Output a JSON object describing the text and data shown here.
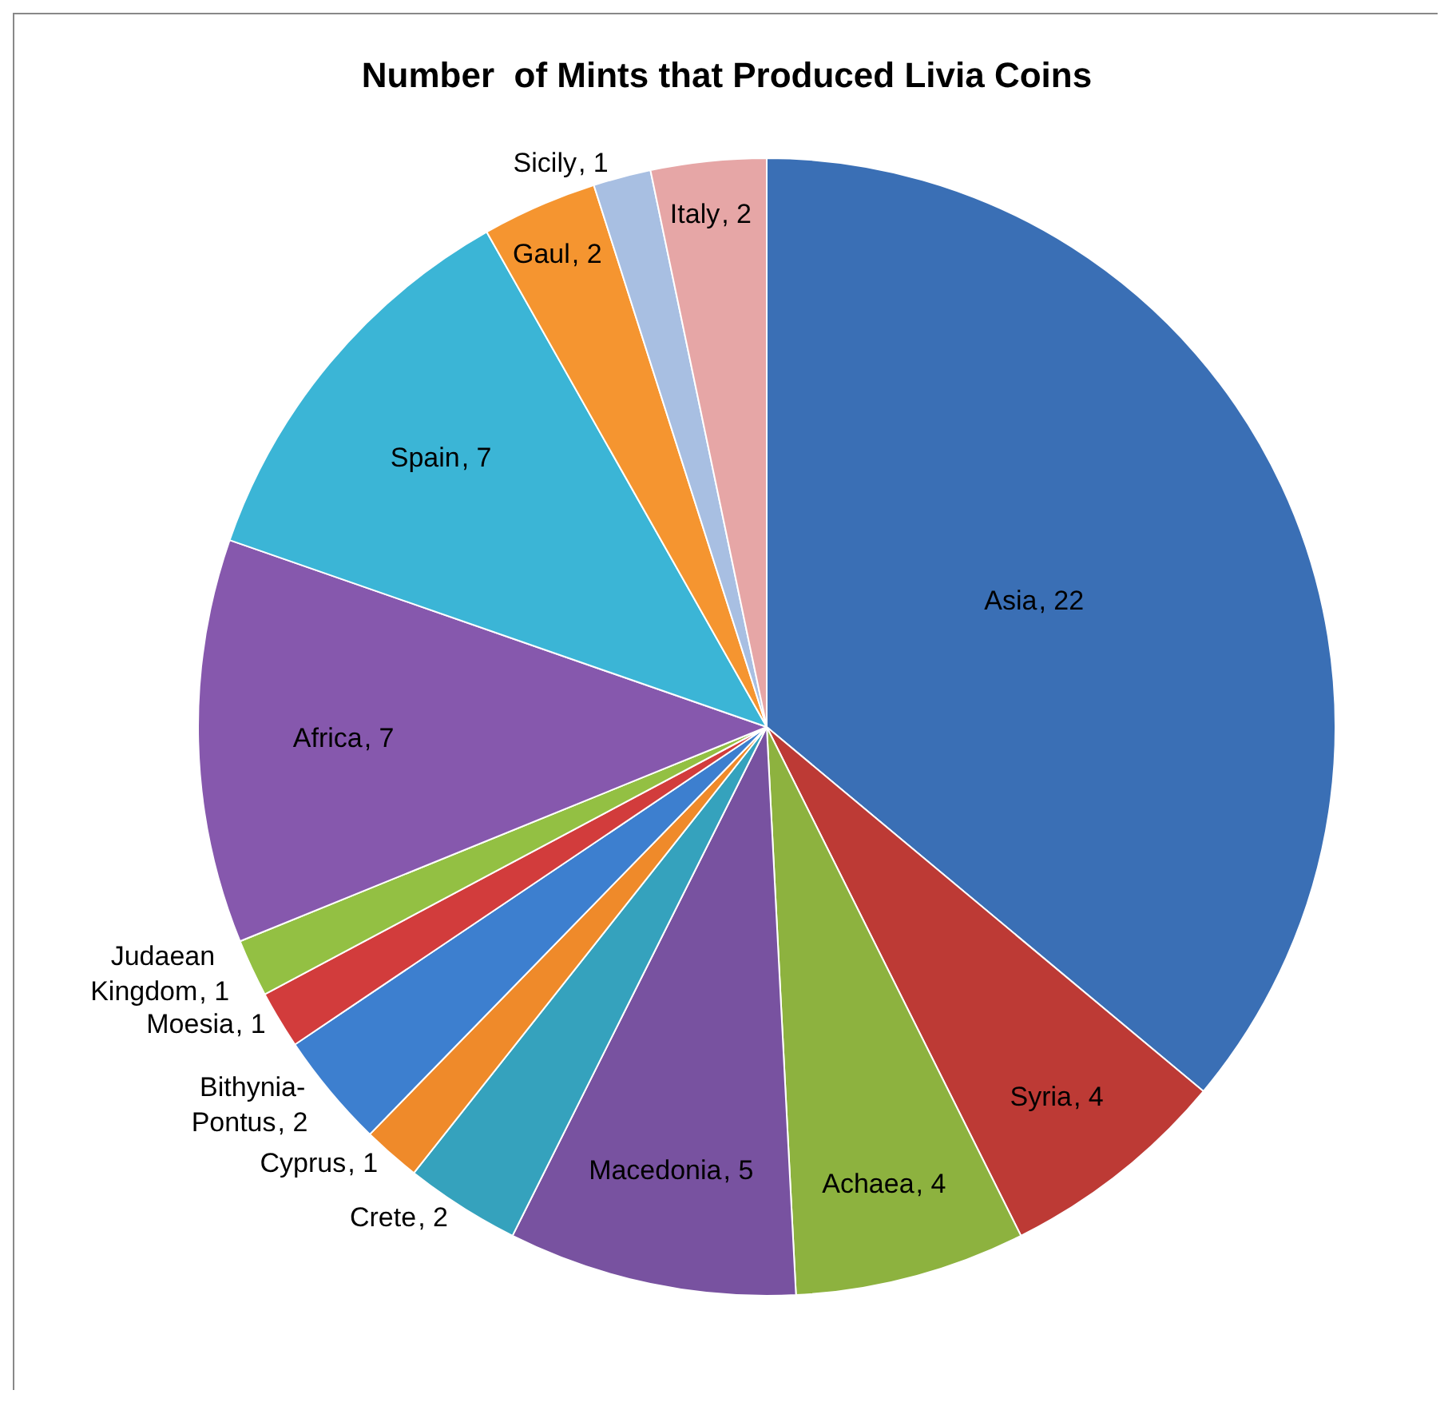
{
  "chart_data": {
    "type": "pie",
    "title": "Number  of Mints that Produced Livia Coins",
    "categories": [
      "Asia",
      "Syria",
      "Achaea",
      "Macedonia",
      "Crete",
      "Cyprus",
      "Bithynia-Pontus",
      "Moesia",
      "Judaean Kingdom",
      "Africa",
      "Spain",
      "Gaul",
      "Sicily",
      "Italy"
    ],
    "values": [
      22,
      4,
      4,
      5,
      2,
      1,
      2,
      1,
      1,
      7,
      7,
      2,
      1,
      2
    ],
    "colors": [
      "#3a6fb5",
      "#bd3a35",
      "#8db23f",
      "#7852a0",
      "#35a2bd",
      "#ef8a2a",
      "#3d7fcf",
      "#d23c3c",
      "#93c043",
      "#8658ad",
      "#3bb5d6",
      "#f59530",
      "#a8bfe2",
      "#e6a6a6"
    ],
    "value_labels": [
      ", 22",
      ", 4",
      ", 4",
      ", 5",
      ", 2",
      ", 1",
      ", 2",
      ", 1",
      ", 1",
      ", 7",
      ", 7",
      ", 2",
      ", 1",
      ", 2"
    ],
    "legend": false
  }
}
